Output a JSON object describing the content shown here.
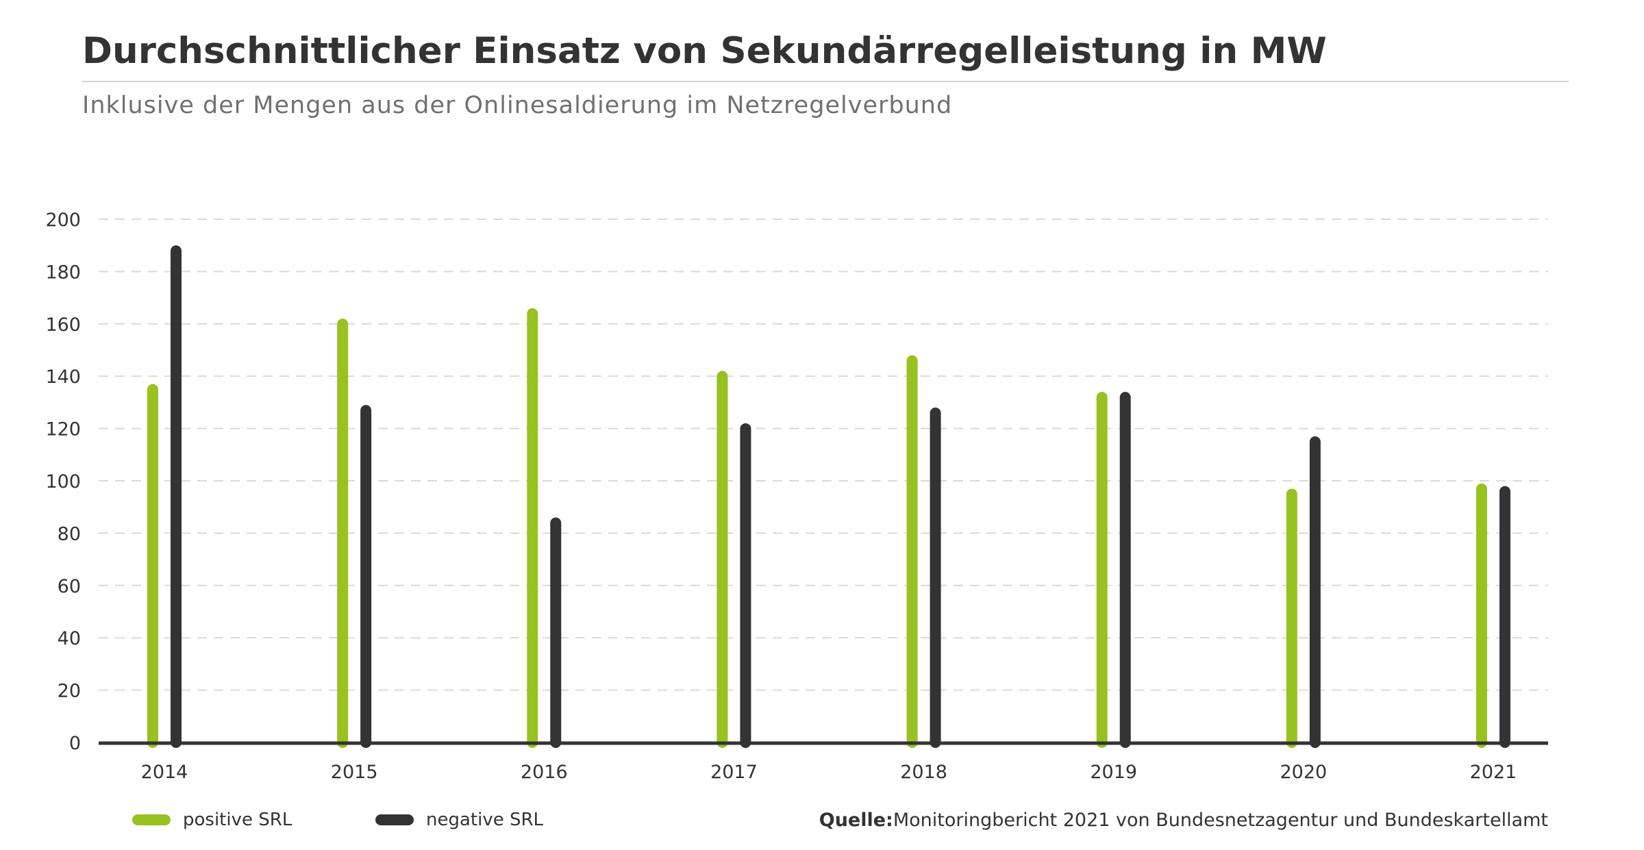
{
  "title": "Durchschnittlicher Einsatz von Sekundärregelleistung in MW",
  "subtitle": "Inklusive der Mengen aus der Onlinesaldierung im Netzregelverbund",
  "source": {
    "label": "Quelle:",
    "text": "Monitoringbericht 2021 von Bundesnetzagentur und Bundeskartellamt"
  },
  "colors": {
    "positive": "#97c21f",
    "negative": "#333333",
    "grid": "#d9d9d9",
    "axis": "#333333"
  },
  "chart_data": {
    "type": "bar",
    "title": "Durchschnittlicher Einsatz von Sekundärregelleistung in MW",
    "xlabel": "",
    "ylabel": "",
    "ylim": [
      0,
      200
    ],
    "yticks": [
      0,
      20,
      40,
      60,
      80,
      100,
      120,
      140,
      160,
      180,
      200
    ],
    "grid": true,
    "legend_position": "bottom-left",
    "categories": [
      "2014",
      "2015",
      "2016",
      "2017",
      "2018",
      "2019",
      "2020",
      "2021"
    ],
    "series": [
      {
        "name": "positive SRL",
        "values": [
          137,
          162,
          166,
          142,
          148,
          134,
          97,
          99
        ]
      },
      {
        "name": "negative SRL",
        "values": [
          190,
          129,
          86,
          122,
          128,
          134,
          117,
          98
        ]
      }
    ]
  }
}
